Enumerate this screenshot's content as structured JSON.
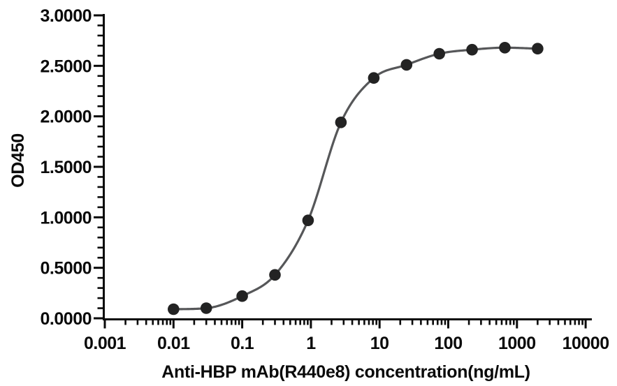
{
  "chart_data": {
    "type": "line",
    "title": "",
    "xlabel": "Anti-HBP mAb(R440e8) concentration(ng/mL)",
    "ylabel": "OD450",
    "x_scale": "log10",
    "xlim": [
      0.001,
      10000
    ],
    "ylim": [
      0.0,
      3.0
    ],
    "grid": false,
    "legend": "none",
    "x_tick_labels": [
      "0.001",
      "0.01",
      "0.1",
      "1",
      "10",
      "100",
      "1000",
      "10000"
    ],
    "x_tick_values": [
      0.001,
      0.01,
      0.1,
      1,
      10,
      100,
      1000,
      10000
    ],
    "x_minor_ticks_per_decade": [
      2,
      3,
      4,
      5,
      6,
      7,
      8,
      9
    ],
    "y_tick_labels": [
      "0.0000",
      "0.5000",
      "1.0000",
      "1.5000",
      "2.0000",
      "2.5000",
      "3.0000"
    ],
    "y_tick_values": [
      0,
      0.5,
      1,
      1.5,
      2,
      2.5,
      3
    ],
    "y_minor_step": 0.1,
    "series": [
      {
        "marker": "circle",
        "x": [
          0.01,
          0.03,
          0.1,
          0.3,
          0.91,
          2.74,
          8.23,
          24.69,
          74.07,
          222.22,
          666.67,
          2000
        ],
        "y": [
          0.09,
          0.1,
          0.22,
          0.43,
          0.97,
          1.94,
          2.38,
          2.51,
          2.62,
          2.66,
          2.68,
          2.67
        ]
      }
    ],
    "colors": {
      "background": "#ffffff",
      "axis": "#0a0a0a",
      "text": "#0a0a0a",
      "curve": "#565759",
      "marker": "#232323"
    }
  }
}
